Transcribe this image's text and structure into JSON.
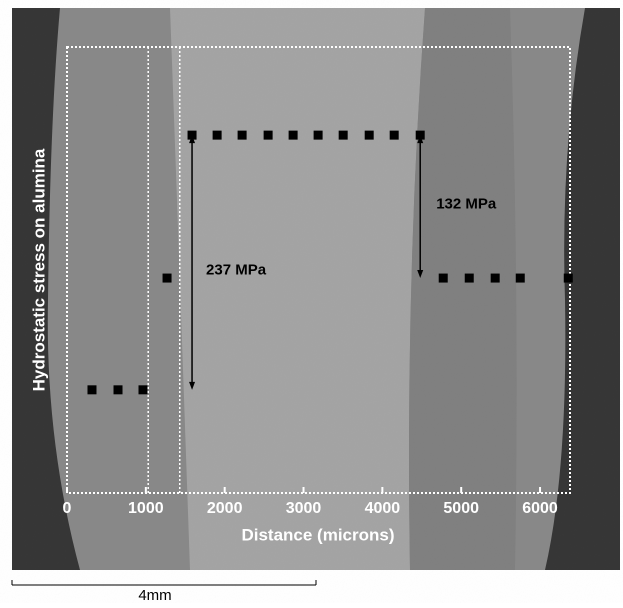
{
  "chart_data": {
    "type": "scatter",
    "y_label": "Hydrostatic stress on alumina",
    "x_label": "Distance (microns)",
    "xlim": [
      0,
      6380
    ],
    "ylim": [
      -96,
      319
    ],
    "xticks": [
      0,
      1000,
      2000,
      3000,
      4000,
      5000,
      6000
    ],
    "series": [
      {
        "color": "#000000",
        "x": [
          317,
          647,
          964,
          1269,
          1586,
          1904,
          2221,
          2551,
          2868,
          3185,
          3503,
          3833,
          4150,
          4480,
          4772,
          5102,
          5431,
          5749,
          6358
        ],
        "values": [
          0,
          0,
          0,
          104,
          237,
          237,
          237,
          237,
          237,
          237,
          237,
          237,
          237,
          237,
          104,
          104,
          104,
          104,
          104
        ]
      }
    ],
    "vlines": [
      1030,
      1430
    ],
    "annotations": [
      {
        "text": "237 MPa",
        "x": 1586,
        "y": [
          0,
          237
        ]
      },
      {
        "text": "132 MPa",
        "x": 4480,
        "y": [
          104,
          237
        ]
      }
    ],
    "scale_bar": "4mm"
  }
}
